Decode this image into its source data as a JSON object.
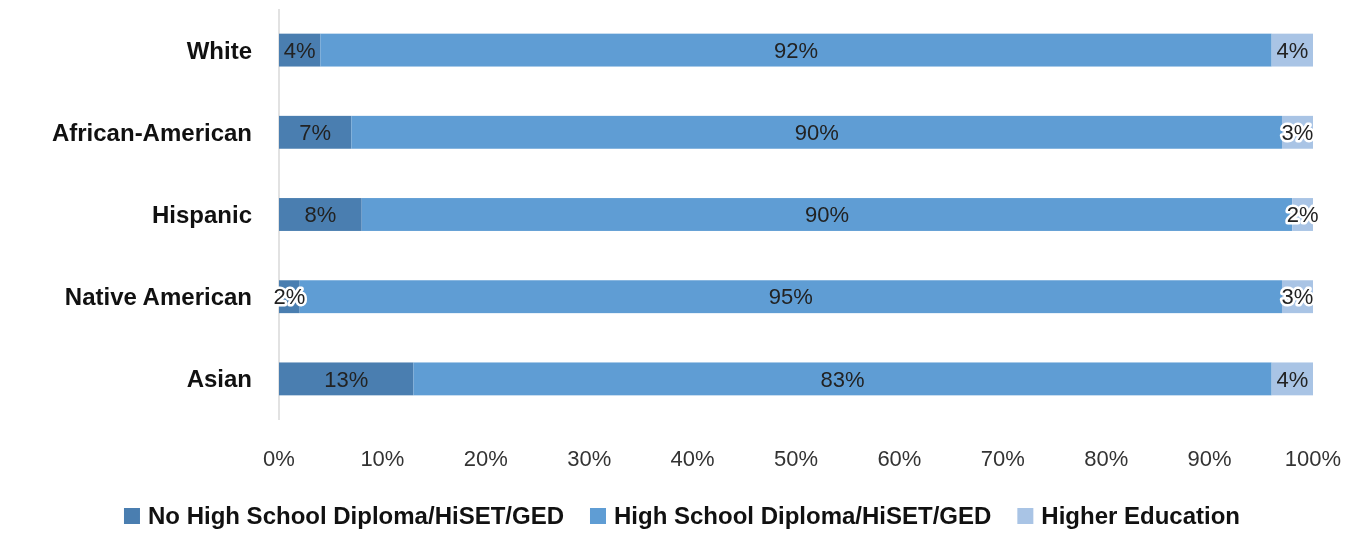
{
  "chart_data": {
    "type": "bar",
    "orientation": "horizontal",
    "stacked": true,
    "categories": [
      "White",
      "African-American",
      "Hispanic",
      "Native American",
      "Asian"
    ],
    "series": [
      {
        "name": "No High School Diploma/HiSET/GED",
        "color": "#4a7eb0",
        "values": [
          4,
          7,
          8,
          2,
          13
        ],
        "value_labels": [
          "4%",
          "7%",
          "8%",
          "2%",
          "13%"
        ]
      },
      {
        "name": "High School Diploma/HiSET/GED",
        "color": "#5f9dd4",
        "values": [
          92,
          90,
          90,
          95,
          83
        ],
        "value_labels": [
          "92%",
          "90%",
          "90%",
          "95%",
          "83%"
        ]
      },
      {
        "name": "Higher Education",
        "color": "#a9c4e5",
        "values": [
          4,
          3,
          2,
          3,
          4
        ],
        "value_labels": [
          "4%",
          "3%",
          "2%",
          "3%",
          "4%"
        ]
      }
    ],
    "xlim": [
      0,
      100
    ],
    "xticks": [
      {
        "value": 0,
        "label": "0%"
      },
      {
        "value": 10,
        "label": "10%"
      },
      {
        "value": 20,
        "label": "20%"
      },
      {
        "value": 30,
        "label": "30%"
      },
      {
        "value": 40,
        "label": "40%"
      },
      {
        "value": 50,
        "label": "50%"
      },
      {
        "value": 60,
        "label": "60%"
      },
      {
        "value": 70,
        "label": "70%"
      },
      {
        "value": 80,
        "label": "80%"
      },
      {
        "value": 90,
        "label": "90%"
      },
      {
        "value": 100,
        "label": "100%"
      }
    ],
    "grid": false,
    "legend": "bottom"
  }
}
